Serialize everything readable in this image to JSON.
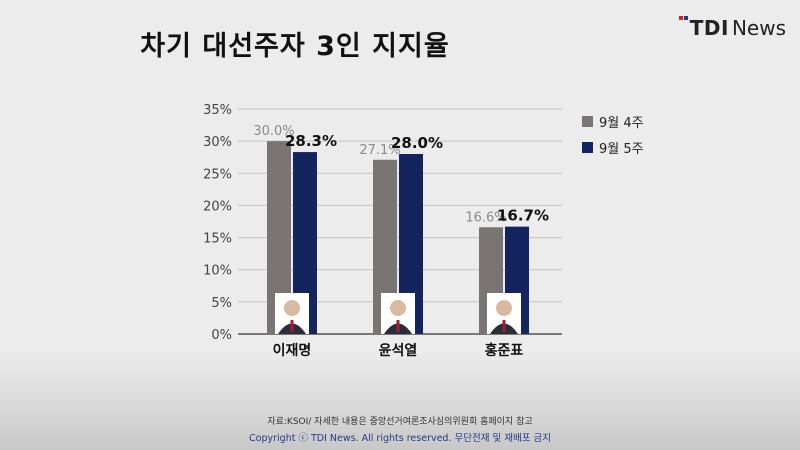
{
  "title": "차기 대선주자 3인 지지율",
  "logo": {
    "brand_bold": "TDI",
    "brand_light": "News"
  },
  "source": "자료:KSOI/ 자세한 내용은 중앙선거여론조사심의위원회 홈페이지 참고",
  "copyright": "Copyright ⓒ TDI News. All rights reserved. 무단전재 및 재배포 금지",
  "colors": {
    "series1": "#7a7474",
    "series2": "#13245e",
    "grid": "#c4c4c4",
    "axis": "#333333"
  },
  "chart_data": {
    "type": "bar",
    "categories": [
      "이재명",
      "윤석열",
      "홍준표"
    ],
    "series": [
      {
        "name": "9월 4주",
        "values": [
          30.0,
          27.1,
          16.6
        ],
        "labels": [
          "30.0%",
          "27.1%",
          "16.6%"
        ]
      },
      {
        "name": "9월 5주",
        "values": [
          28.3,
          28.0,
          16.7
        ],
        "labels": [
          "28.3%",
          "28.0%",
          "16.7%"
        ]
      }
    ],
    "yticks": [
      "0%",
      "5%",
      "10%",
      "15%",
      "20%",
      "25%",
      "30%",
      "35%"
    ],
    "ylim": [
      0,
      35
    ],
    "grid": true,
    "legend": "right"
  }
}
